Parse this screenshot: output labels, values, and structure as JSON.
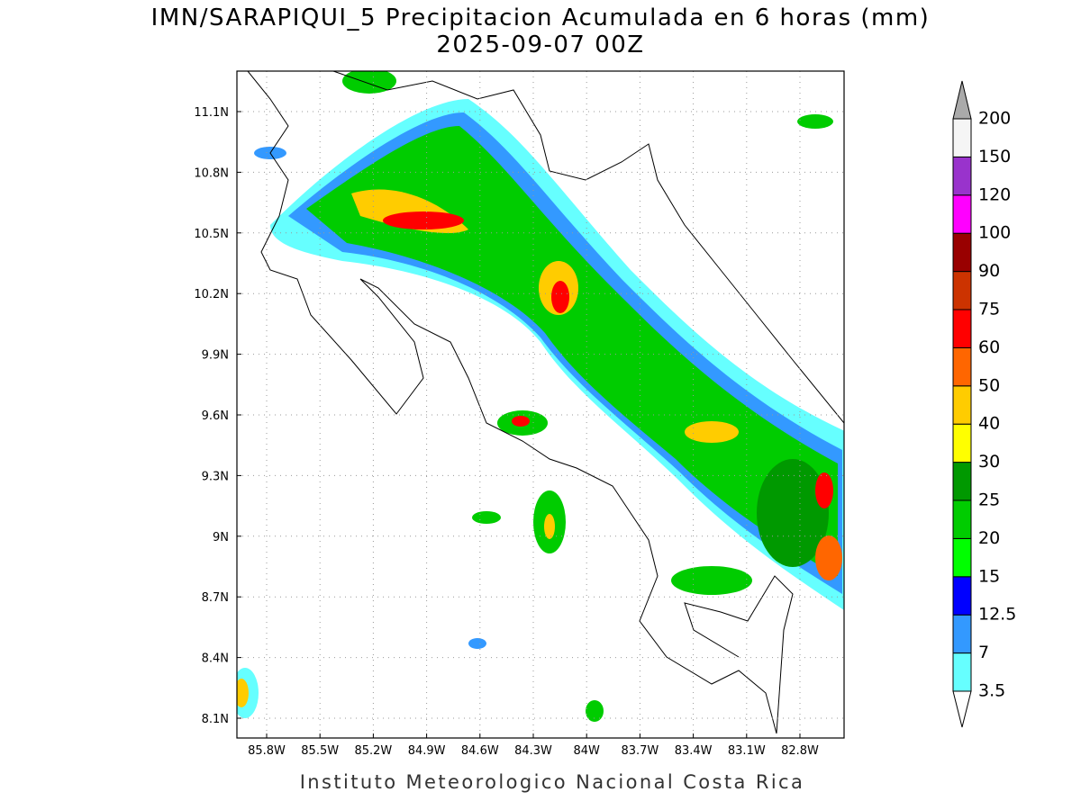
{
  "map": {
    "title": "IMN/SARAPIQUI_5 Precipitacion Acumulada en 6 horas (mm)",
    "subtitle": "2025-09-07 00Z",
    "lon_ticks": [
      "85.8W",
      "85.5W",
      "85.2W",
      "84.9W",
      "84.6W",
      "84.3W",
      "84W",
      "83.7W",
      "83.4W",
      "83.1W",
      "82.8W"
    ],
    "lat_ticks": [
      "11.1N",
      "10.8N",
      "10.5N",
      "10.2N",
      "9.9N",
      "9.6N",
      "9.3N",
      "9N",
      "8.7N",
      "8.4N",
      "8.1N"
    ],
    "legend": {
      "levels": [
        "3.5",
        "7",
        "12.5",
        "15",
        "20",
        "25",
        "30",
        "40",
        "50",
        "60",
        "75",
        "90",
        "100",
        "120",
        "150",
        "200"
      ],
      "colors": [
        "#66ffff",
        "#3399ff",
        "#0000ff",
        "#00ff00",
        "#00cc00",
        "#009900",
        "#ffff00",
        "#ffcc00",
        "#ff6600",
        "#ff0000",
        "#cc3300",
        "#990000",
        "#ff00ff",
        "#9933cc",
        "#f5f5f5"
      ],
      "below_color": "#ffffff",
      "above_color": "#aaaaaa"
    },
    "footer": "Instituto Meteorologico Nacional Costa Rica"
  }
}
